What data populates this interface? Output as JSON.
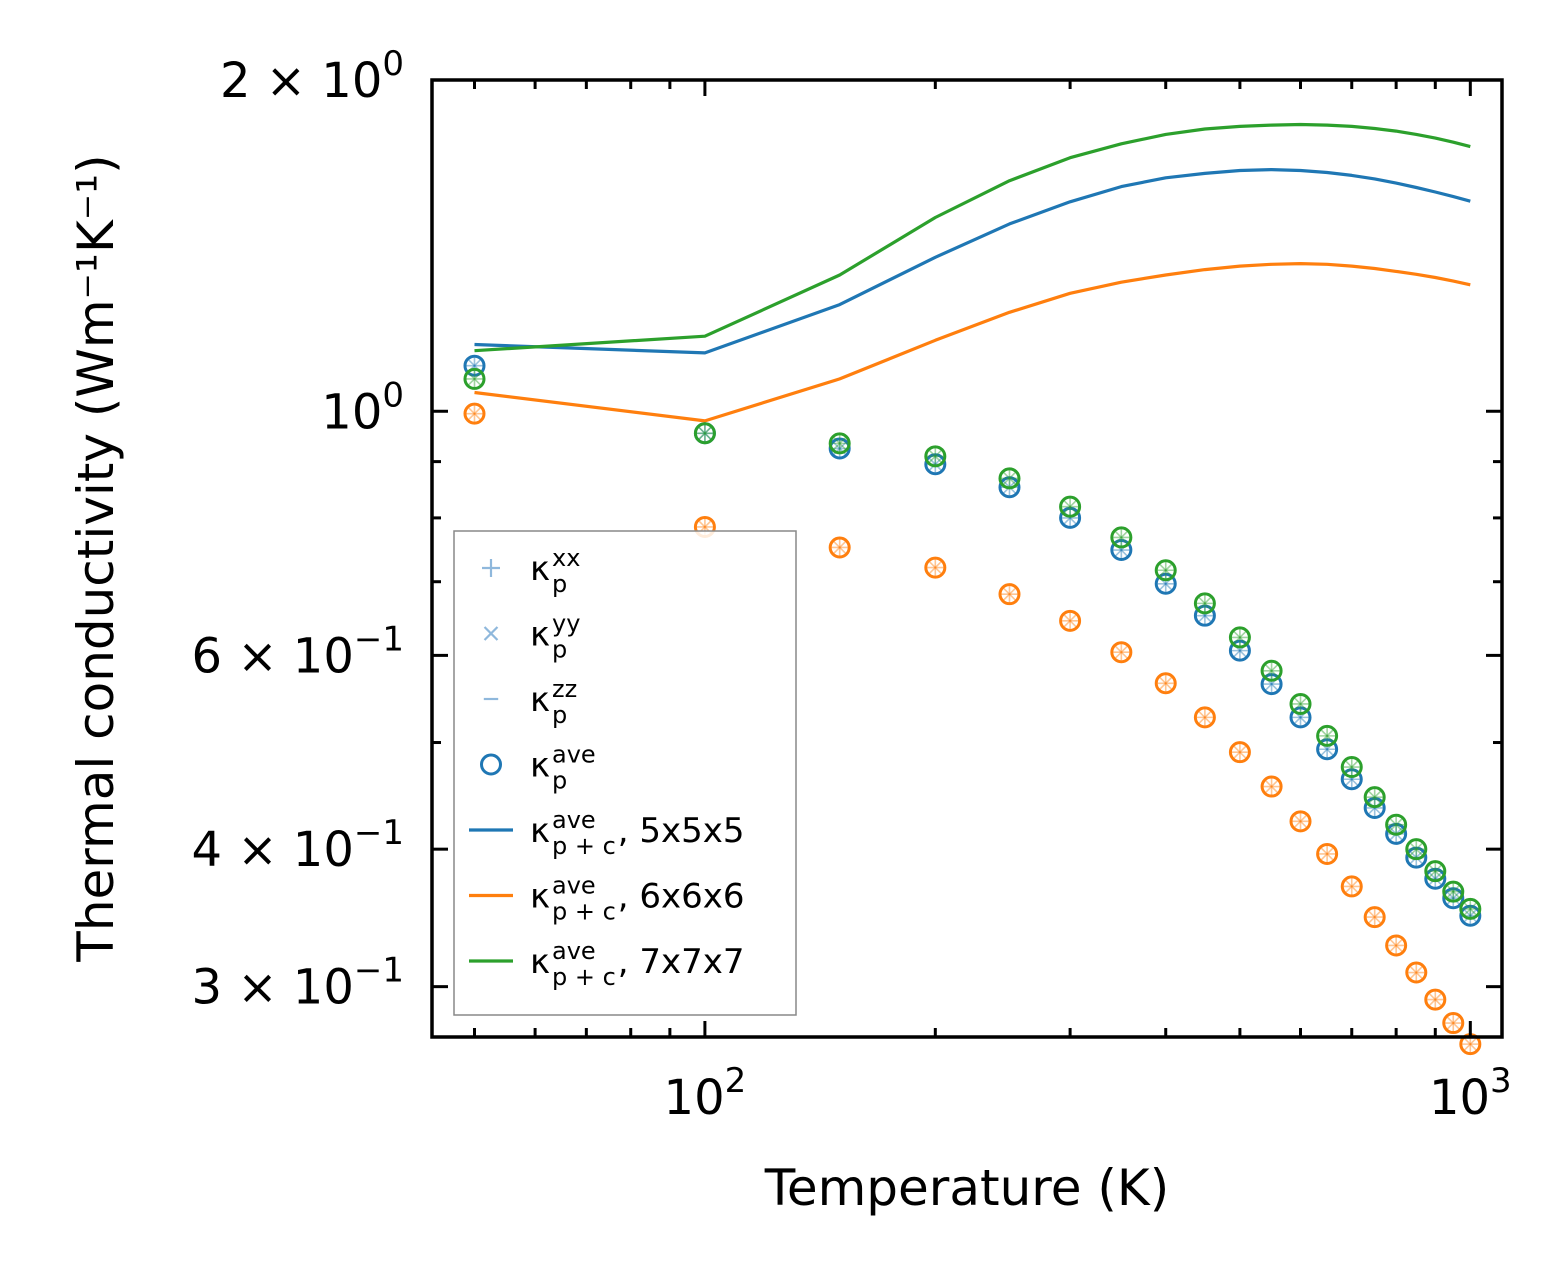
{
  "chart_data": {
    "type": "line",
    "title": "",
    "xlabel": "Temperature (K)",
    "ylabel": "Thermal conductivity (Wm⁻¹K⁻¹)",
    "xscale": "log",
    "yscale": "log",
    "xlim": [
      44,
      1100
    ],
    "ylim": [
      0.27,
      2.0
    ],
    "x_ticks": [
      {
        "value": 100,
        "base": "10",
        "exp": "2"
      },
      {
        "value": 1000,
        "base": "10",
        "exp": "3"
      }
    ],
    "y_ticks": [
      {
        "value": 2.0,
        "mant": "2",
        "times": "×",
        "base": "10",
        "exp": "0"
      },
      {
        "value": 1.0,
        "mant": "",
        "times": "",
        "base": "10",
        "exp": "0"
      },
      {
        "value": 0.6,
        "mant": "6",
        "times": "×",
        "base": "10",
        "exp": "−1"
      },
      {
        "value": 0.4,
        "mant": "4",
        "times": "×",
        "base": "10",
        "exp": "−1"
      },
      {
        "value": 0.3,
        "mant": "3",
        "times": "×",
        "base": "10",
        "exp": "−1"
      }
    ],
    "colors": {
      "blue": "#1f77b4",
      "orange": "#ff7f0e",
      "green": "#2ca02c",
      "light_blue": "#8fb8dc"
    },
    "x_points": [
      50,
      100,
      150,
      200,
      250,
      300,
      350,
      400,
      450,
      500,
      550,
      600,
      650,
      700,
      750,
      800,
      850,
      900,
      950,
      1000
    ],
    "x_lines": [
      50,
      100,
      150,
      200,
      250,
      300,
      350,
      400,
      450,
      500,
      550,
      600,
      650,
      700,
      750,
      800,
      850,
      900,
      950,
      1000
    ],
    "series": [
      {
        "name": "5x5x5",
        "color": "#1f77b4",
        "points": [
          1.1,
          0.955,
          0.925,
          0.895,
          0.853,
          0.8,
          0.748,
          0.697,
          0.652,
          0.606,
          0.565,
          0.527,
          0.493,
          0.463,
          0.436,
          0.413,
          0.393,
          0.376,
          0.361,
          0.348
        ],
        "line": [
          1.15,
          1.13,
          1.25,
          1.38,
          1.48,
          1.55,
          1.6,
          1.63,
          1.645,
          1.655,
          1.658,
          1.655,
          1.648,
          1.638,
          1.626,
          1.612,
          1.597,
          1.582,
          1.567,
          1.552
        ]
      },
      {
        "name": "6x6x6",
        "color": "#ff7f0e",
        "points": [
          0.995,
          0.785,
          0.752,
          0.721,
          0.682,
          0.645,
          0.604,
          0.566,
          0.527,
          0.49,
          0.456,
          0.424,
          0.396,
          0.37,
          0.347,
          0.327,
          0.309,
          0.292,
          0.278,
          0.266
        ],
        "line": [
          1.04,
          0.98,
          1.07,
          1.16,
          1.23,
          1.28,
          1.31,
          1.33,
          1.345,
          1.355,
          1.36,
          1.362,
          1.36,
          1.355,
          1.348,
          1.34,
          1.332,
          1.323,
          1.313,
          1.303
        ]
      },
      {
        "name": "7x7x7",
        "color": "#2ca02c",
        "points": [
          1.07,
          0.955,
          0.935,
          0.91,
          0.869,
          0.819,
          0.768,
          0.717,
          0.669,
          0.623,
          0.581,
          0.542,
          0.507,
          0.475,
          0.446,
          0.421,
          0.4,
          0.382,
          0.366,
          0.353
        ],
        "line": [
          1.135,
          1.17,
          1.33,
          1.5,
          1.62,
          1.7,
          1.75,
          1.785,
          1.805,
          1.815,
          1.82,
          1.822,
          1.82,
          1.815,
          1.807,
          1.797,
          1.785,
          1.771,
          1.756,
          1.74
        ]
      }
    ],
    "legend": {
      "position": "lower-left",
      "entries": [
        {
          "main": "κ",
          "sub": "p",
          "sup": "xx",
          "suffix": "",
          "marker": "plus"
        },
        {
          "main": "κ",
          "sub": "p",
          "sup": "yy",
          "suffix": "",
          "marker": "cross"
        },
        {
          "main": "κ",
          "sub": "p",
          "sup": "zz",
          "suffix": "",
          "marker": "dash"
        },
        {
          "main": "κ",
          "sub": "p",
          "sup": "ave",
          "suffix": "",
          "marker": "circle"
        },
        {
          "main": "κ",
          "sub": "p + c",
          "sup": "ave",
          "suffix": ", 5x5x5",
          "marker": "line-blue"
        },
        {
          "main": "κ",
          "sub": "p + c",
          "sup": "ave",
          "suffix": ", 6x6x6",
          "marker": "line-orange"
        },
        {
          "main": "κ",
          "sub": "p + c",
          "sup": "ave",
          "suffix": ", 7x7x7",
          "marker": "line-green"
        }
      ]
    }
  }
}
